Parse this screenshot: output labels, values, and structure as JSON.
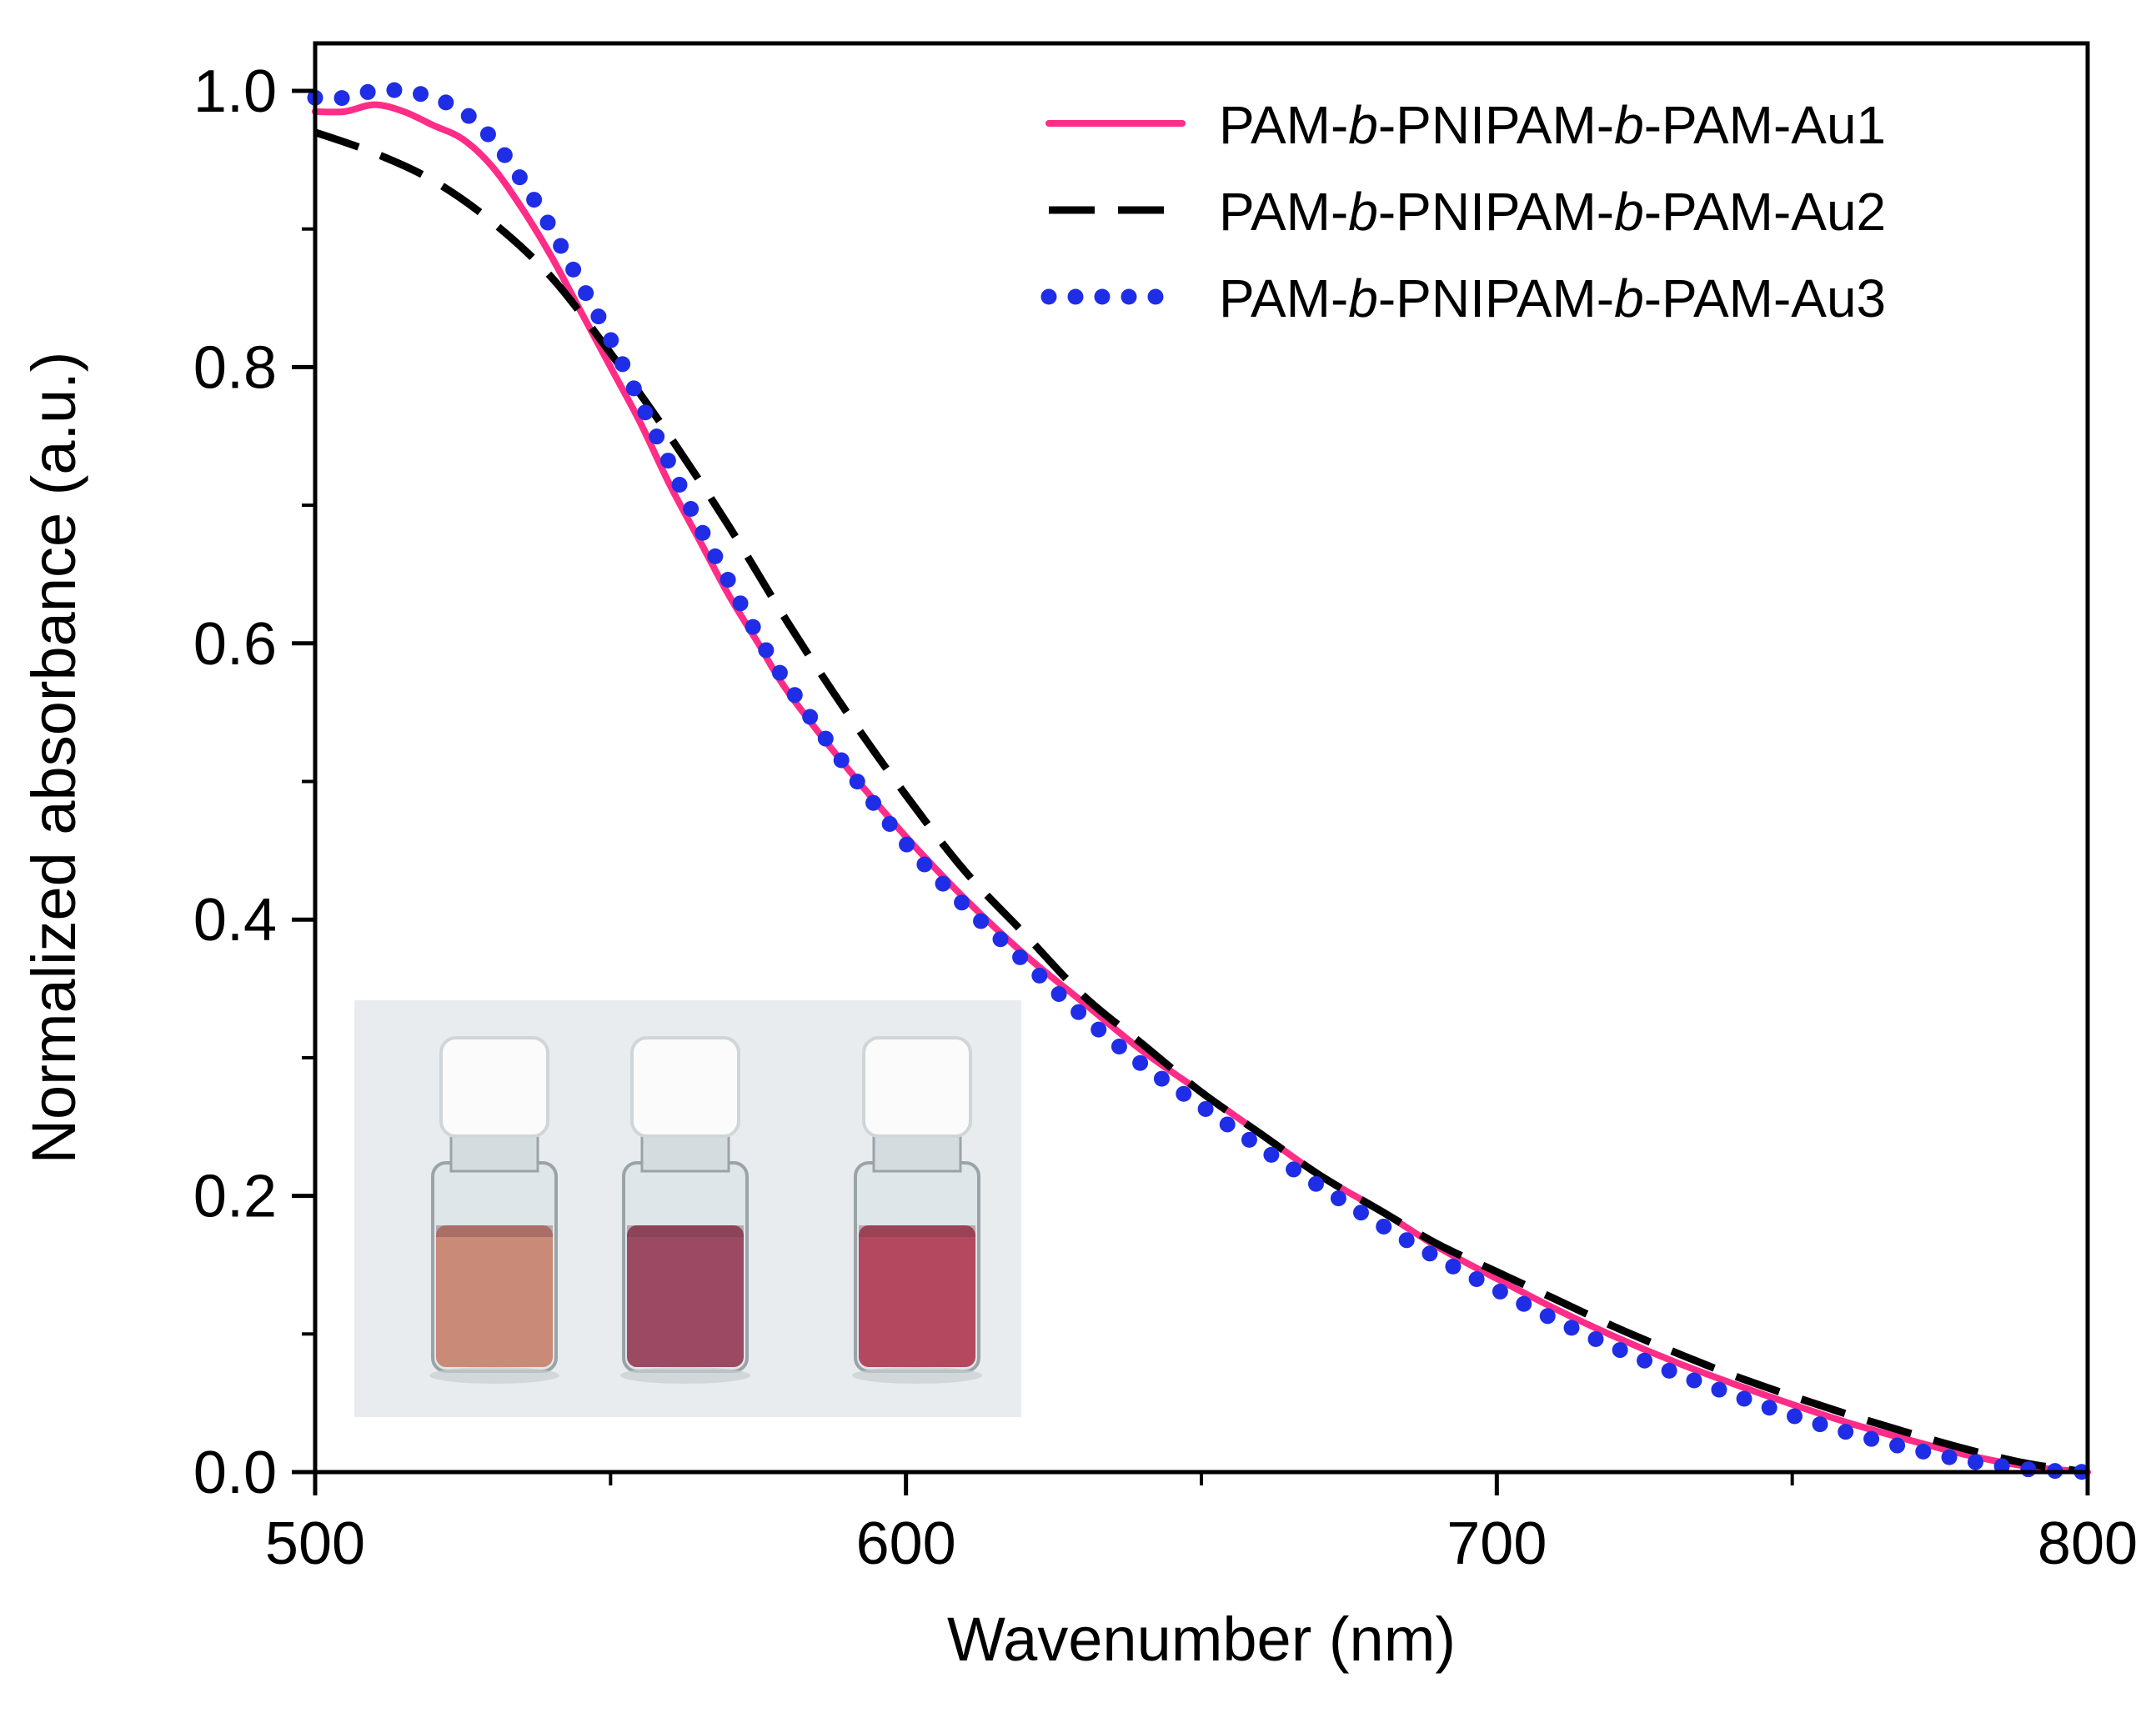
{
  "chart_data": {
    "type": "line",
    "title": "",
    "xlabel": "Wavenumber (nm)",
    "ylabel": "Normalized absorbance (a.u.)",
    "xlim": [
      500,
      800
    ],
    "ylim": [
      0.0,
      1.0
    ],
    "x_ticks": [
      "500",
      "600",
      "700",
      "800"
    ],
    "y_ticks": [
      "0.0",
      "0.2",
      "0.4",
      "0.6",
      "0.8",
      "1.0"
    ],
    "grid": false,
    "legend_position": "top-right",
    "series": [
      {
        "name": "PAM-b-PNIPAM-b-PAM-Au1",
        "name_parts": [
          "PAM-",
          "b",
          "-PNIPAM-",
          "b",
          "-PAM-Au1"
        ],
        "style": "solid",
        "color": "#ff2d87",
        "x": [
          500,
          505,
          510,
          515,
          520,
          525,
          530,
          535,
          540,
          545,
          550,
          555,
          560,
          565,
          570,
          575,
          580,
          590,
          600,
          610,
          620,
          630,
          640,
          650,
          660,
          670,
          680,
          690,
          700,
          710,
          720,
          730,
          740,
          750,
          760,
          770,
          780,
          790,
          800
        ],
        "y": [
          0.985,
          0.985,
          0.99,
          0.985,
          0.975,
          0.965,
          0.945,
          0.915,
          0.88,
          0.84,
          0.8,
          0.76,
          0.715,
          0.675,
          0.635,
          0.6,
          0.565,
          0.51,
          0.46,
          0.415,
          0.375,
          0.34,
          0.305,
          0.275,
          0.245,
          0.215,
          0.19,
          0.163,
          0.14,
          0.118,
          0.098,
          0.08,
          0.064,
          0.049,
          0.035,
          0.023,
          0.012,
          0.004,
          0.0
        ]
      },
      {
        "name": "PAM-b-PNIPAM-b-PAM-Au2",
        "name_parts": [
          "PAM-",
          "b",
          "-PNIPAM-",
          "b",
          "-PAM-Au2"
        ],
        "style": "dashed",
        "color": "#000000",
        "x": [
          500,
          510,
          520,
          530,
          540,
          550,
          560,
          570,
          580,
          590,
          600,
          610,
          620,
          630,
          640,
          650,
          660,
          670,
          680,
          690,
          700,
          710,
          720,
          730,
          740,
          750,
          760,
          770,
          780,
          790,
          800
        ],
        "y": [
          0.97,
          0.955,
          0.935,
          0.905,
          0.865,
          0.81,
          0.75,
          0.685,
          0.615,
          0.55,
          0.49,
          0.435,
          0.39,
          0.345,
          0.31,
          0.275,
          0.245,
          0.215,
          0.19,
          0.165,
          0.145,
          0.125,
          0.105,
          0.087,
          0.07,
          0.055,
          0.041,
          0.028,
          0.016,
          0.006,
          0.0
        ]
      },
      {
        "name": "PAM-b-PNIPAM-b-PAM-Au3",
        "name_parts": [
          "PAM-",
          "b",
          "-PNIPAM-",
          "b",
          "-PAM-Au3"
        ],
        "style": "dotted",
        "color": "#1f2ee6",
        "x": [
          500,
          505,
          510,
          515,
          520,
          525,
          530,
          535,
          540,
          545,
          550,
          555,
          560,
          565,
          570,
          575,
          580,
          590,
          600,
          610,
          620,
          630,
          640,
          650,
          660,
          670,
          680,
          690,
          700,
          710,
          720,
          730,
          740,
          750,
          760,
          770,
          780,
          790,
          800
        ],
        "y": [
          0.995,
          0.995,
          1.0,
          1.0,
          0.995,
          0.985,
          0.965,
          0.935,
          0.9,
          0.86,
          0.82,
          0.775,
          0.73,
          0.685,
          0.645,
          0.605,
          0.57,
          0.51,
          0.455,
          0.41,
          0.37,
          0.33,
          0.295,
          0.265,
          0.235,
          0.207,
          0.18,
          0.155,
          0.132,
          0.11,
          0.09,
          0.072,
          0.056,
          0.041,
          0.028,
          0.017,
          0.008,
          0.002,
          0.0
        ]
      }
    ],
    "inset": {
      "description": "vials",
      "vials": [
        {
          "liquid_color": "#c98a78"
        },
        {
          "liquid_color": "#9c4a63"
        },
        {
          "liquid_color": "#b4485e"
        }
      ]
    }
  }
}
